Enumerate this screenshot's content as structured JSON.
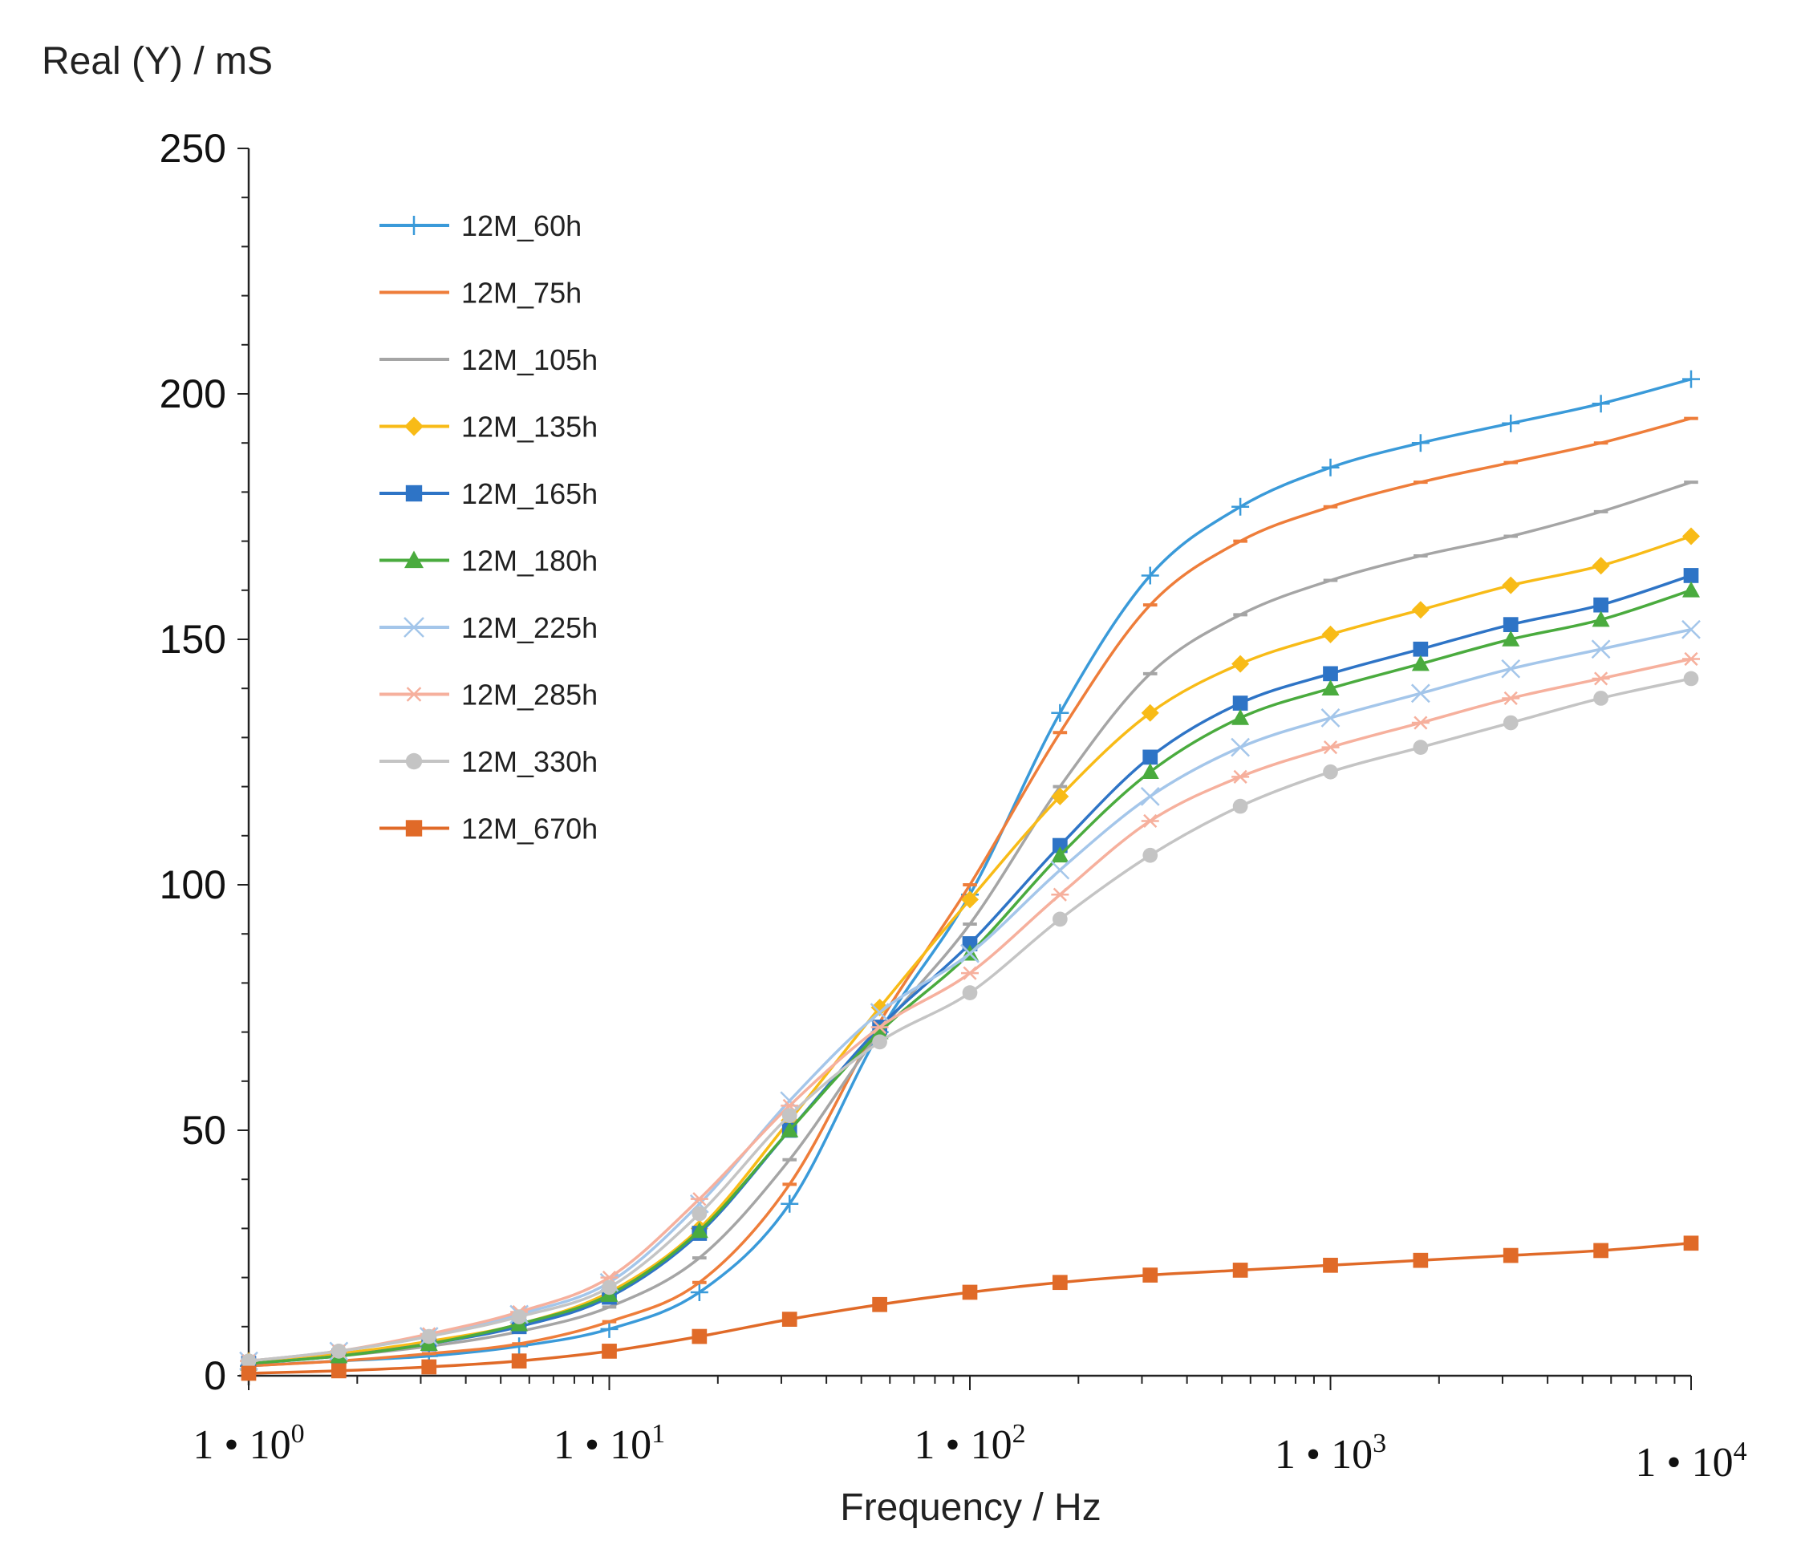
{
  "chart_data": {
    "type": "line",
    "title": "",
    "ylabel": "Real (Y) / mS",
    "xlabel": "Frequency / Hz",
    "xscale": "log",
    "xlim": [
      1,
      10000
    ],
    "ylim": [
      0,
      250
    ],
    "y_ticks": [
      0,
      50,
      100,
      150,
      200,
      250
    ],
    "y_tick_labels": [
      "0",
      "50",
      "100",
      "150",
      "200",
      "250"
    ],
    "x_ticks": [
      1,
      10,
      100,
      1000,
      10000
    ],
    "x_tick_labels": [
      {
        "base": "1 • 10",
        "exp": "0"
      },
      {
        "base": "1 • 10",
        "exp": "1"
      },
      {
        "base": "1 • 10",
        "exp": "2"
      },
      {
        "base": "1 • 10",
        "exp": "3"
      },
      {
        "base": "1 • 10",
        "exp": "4"
      }
    ],
    "grid": false,
    "legend_position": "top-left",
    "x": [
      1,
      1.778,
      3.162,
      5.623,
      10,
      17.78,
      31.62,
      56.23,
      100,
      177.8,
      316.2,
      562.3,
      1000,
      1778,
      3162,
      5623,
      10000
    ],
    "series": [
      {
        "name": "12M_60h",
        "color": "#3a9ad9",
        "marker": "plus",
        "values": [
          2,
          3,
          4,
          6,
          9.5,
          17,
          35,
          70,
          98,
          135,
          163,
          177,
          185,
          190,
          194,
          198,
          203
        ]
      },
      {
        "name": "12M_75h",
        "color": "#ee7d3a",
        "marker": "dash",
        "values": [
          2,
          3,
          4.5,
          6.5,
          11,
          19,
          39,
          72,
          100,
          131,
          157,
          170,
          177,
          182,
          186,
          190,
          195
        ]
      },
      {
        "name": "12M_105h",
        "color": "#a5a5a5",
        "marker": "dash",
        "values": [
          2.5,
          4,
          6,
          9,
          14,
          24,
          44,
          70,
          92,
          120,
          143,
          155,
          162,
          167,
          171,
          176,
          182
        ]
      },
      {
        "name": "12M_135h",
        "color": "#f8bb17",
        "marker": "diamond",
        "values": [
          3,
          4.5,
          7,
          10.5,
          17,
          30,
          52,
          75,
          97,
          118,
          135,
          145,
          151,
          156,
          161,
          165,
          171
        ]
      },
      {
        "name": "12M_165h",
        "color": "#2e74c6",
        "marker": "square",
        "values": [
          2.5,
          4,
          6.5,
          10,
          16,
          29,
          50,
          71,
          88,
          108,
          126,
          137,
          143,
          148,
          153,
          157,
          163
        ]
      },
      {
        "name": "12M_180h",
        "color": "#4aab3e",
        "marker": "triangle",
        "values": [
          2.5,
          4,
          6.5,
          10.5,
          16.5,
          29.5,
          50,
          70,
          86,
          106,
          123,
          134,
          140,
          145,
          150,
          154,
          160
        ]
      },
      {
        "name": "12M_225h",
        "color": "#a4c6ea",
        "marker": "x",
        "values": [
          3,
          5,
          8,
          12.5,
          19,
          35,
          56,
          74,
          86,
          103,
          118,
          128,
          134,
          139,
          144,
          148,
          152
        ]
      },
      {
        "name": "12M_285h",
        "color": "#f6b09d",
        "marker": "asterisk",
        "values": [
          3,
          5,
          8.5,
          13,
          20,
          36,
          55,
          71,
          82,
          98,
          113,
          122,
          128,
          133,
          138,
          142,
          146
        ]
      },
      {
        "name": "12M_330h",
        "color": "#c4c4c4",
        "marker": "circle",
        "values": [
          3,
          5,
          8,
          12,
          18,
          33,
          53,
          68,
          78,
          93,
          106,
          116,
          123,
          128,
          133,
          138,
          142
        ]
      },
      {
        "name": "12M_670h",
        "color": "#e06a28",
        "marker": "square",
        "values": [
          0.5,
          1,
          1.8,
          3,
          5,
          8,
          11.5,
          14.5,
          17,
          19,
          20.5,
          21.5,
          22.5,
          23.5,
          24.5,
          25.5,
          27
        ]
      }
    ]
  }
}
